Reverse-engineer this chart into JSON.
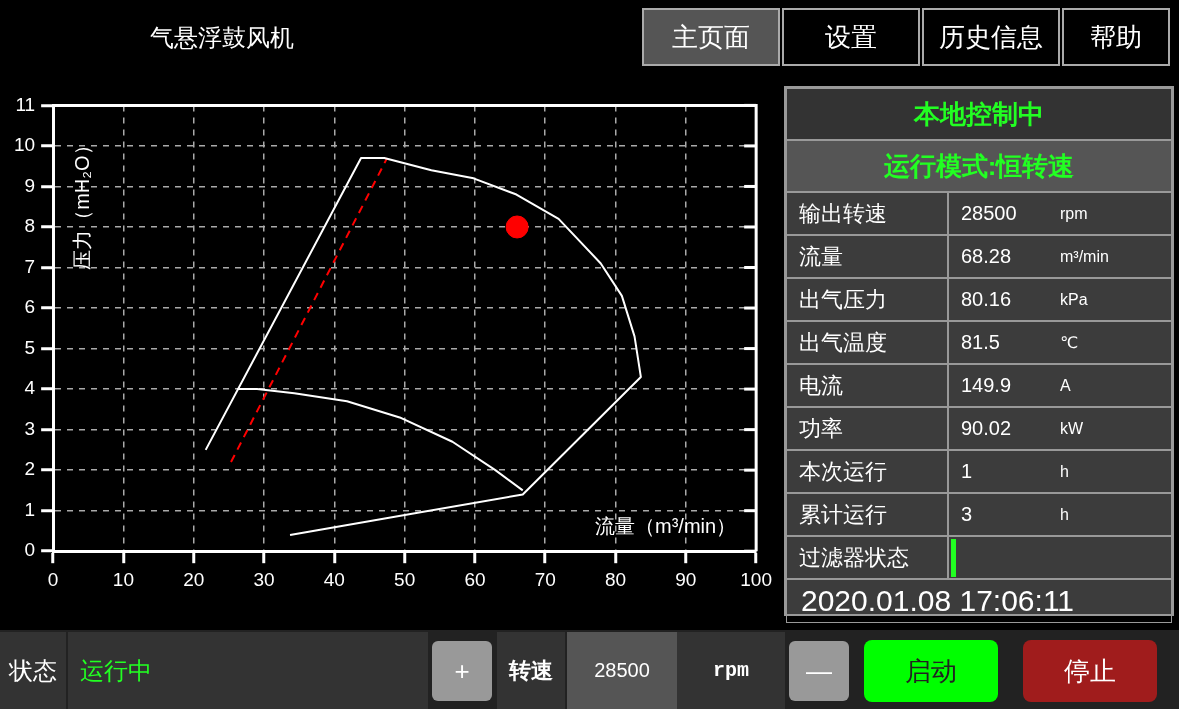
{
  "chart_data": [
    {
      "type": "other",
      "title": "气悬浮鼓风机",
      "annotations": [
        "主页面",
        "设置",
        "历史信息",
        "帮助"
      ]
    },
    {
      "type": "line",
      "xlabel": "流量（m³/min）",
      "ylabel": "压力（mH₂O）",
      "xlim": [
        0,
        100
      ],
      "xticks": [
        0,
        10,
        20,
        30,
        40,
        50,
        60,
        70,
        80,
        90,
        100
      ],
      "ylim": [
        0,
        11
      ],
      "yticks": [
        0,
        1,
        2,
        3,
        4,
        5,
        6,
        7,
        8,
        9,
        10,
        11
      ],
      "grid": true,
      "legend": false,
      "series": [
        {
          "type": "line",
          "color": "#ffffff",
          "marker": "none",
          "line_style": "solid",
          "x": [
            21.7,
            43.8,
            47.1,
            53.8,
            59.8,
            65.9,
            71.9,
            77.9,
            80.9,
            82.7,
            83.6,
            66.8,
            33.7
          ],
          "values": [
            2.5,
            9.7,
            9.7,
            9.4,
            9.2,
            8.8,
            8.2,
            7.1,
            6.3,
            5.3,
            4.3,
            1.4,
            0.4
          ]
        },
        {
          "type": "line",
          "color": "#ffffff",
          "marker": "none",
          "line_style": "solid",
          "x": [
            26.2,
            29.0,
            34.3,
            41.8,
            49.3,
            56.8,
            62.9,
            66.8
          ],
          "values": [
            4.0,
            4.0,
            3.9,
            3.7,
            3.3,
            2.7,
            2.0,
            1.5
          ]
        },
        {
          "type": "line",
          "color": "#ff0000",
          "marker": "none",
          "line_style": "dashed",
          "x": [
            25.3,
            47.5
          ],
          "values": [
            2.2,
            9.7
          ]
        },
        {
          "type": "scatter",
          "color": "#ff0000",
          "marker": "circle",
          "x": [
            66.0
          ],
          "values": [
            8.0
          ]
        }
      ]
    },
    {
      "type": "other",
      "annotations": [
        "本地控制中",
        "运行模式:恒转速",
        "输出转速",
        "28500",
        "rpm",
        "流量",
        "68.28",
        "m³/min",
        "出气压力",
        "80.16",
        "kPa",
        "出气温度",
        "81.5",
        "℃",
        "电流",
        "149.9",
        "A",
        "功率",
        "90.02",
        "kW",
        "本次运行",
        "1",
        "h",
        "累计运行",
        "3",
        "h",
        "过滤器状态",
        "2020.01.08  17:06:11"
      ]
    },
    {
      "type": "other",
      "annotations": [
        "状态",
        "运行中",
        "+",
        "转速",
        "28500",
        "rpm",
        "—",
        "启动",
        "停止"
      ]
    }
  ]
}
